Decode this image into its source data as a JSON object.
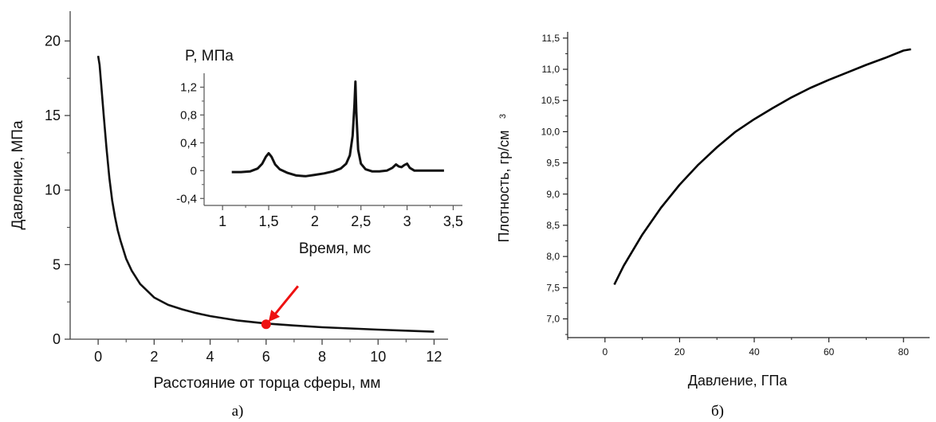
{
  "chart_data": [
    {
      "type": "line",
      "title": "",
      "xlabel": "Расстояние от торца сферы, мм",
      "ylabel": "Давление, МПа",
      "xlim": [
        -1,
        12.5
      ],
      "ylim": [
        0,
        22
      ],
      "xticks": [
        0,
        2,
        4,
        6,
        8,
        10,
        12
      ],
      "xtick_labels": [
        "0",
        "2",
        "4",
        "6",
        "8",
        "10",
        "12"
      ],
      "yticks": [
        0,
        5,
        10,
        15,
        20
      ],
      "ytick_labels": [
        "0",
        "5",
        "10",
        "15",
        "20"
      ],
      "grid": false,
      "series": [
        {
          "color": "#111111",
          "x": [
            0,
            0.05,
            0.1,
            0.2,
            0.3,
            0.4,
            0.5,
            0.6,
            0.7,
            0.8,
            1.0,
            1.2,
            1.5,
            2.0,
            2.5,
            3.0,
            3.5,
            4.0,
            5.0,
            6.0,
            7.0,
            8.0,
            9.0,
            10.0,
            11.0,
            12.0
          ],
          "y": [
            19,
            18.4,
            17.3,
            15.0,
            12.8,
            10.8,
            9.3,
            8.2,
            7.3,
            6.6,
            5.4,
            4.6,
            3.7,
            2.8,
            2.3,
            2.0,
            1.75,
            1.55,
            1.25,
            1.05,
            0.92,
            0.8,
            0.72,
            0.64,
            0.57,
            0.5
          ]
        }
      ],
      "marker": {
        "x": 6,
        "y": 1.0,
        "color": "#ee1111"
      },
      "arrow": {
        "color": "#ee1111"
      },
      "caption": "а)"
    },
    {
      "type": "line",
      "title": "",
      "xlabel": "Время, мс",
      "ylabel": "P, МПа",
      "xlim": [
        0.8,
        3.6
      ],
      "ylim": [
        -0.5,
        1.4
      ],
      "xticks": [
        1,
        1.5,
        2,
        2.5,
        3,
        3.5
      ],
      "xtick_labels": [
        "1",
        "1,5",
        "2",
        "2,5",
        "3",
        "3,5"
      ],
      "yticks": [
        -0.4,
        0,
        0.4,
        0.8,
        1.2
      ],
      "ytick_labels": [
        "-0,4",
        "0",
        "0,4",
        "0,8",
        "1,2"
      ],
      "grid": false,
      "series": [
        {
          "color": "#111111",
          "x": [
            1.1,
            1.2,
            1.3,
            1.38,
            1.43,
            1.47,
            1.5,
            1.53,
            1.57,
            1.62,
            1.7,
            1.8,
            1.9,
            2.0,
            2.1,
            2.2,
            2.28,
            2.34,
            2.38,
            2.41,
            2.43,
            2.44,
            2.45,
            2.47,
            2.5,
            2.55,
            2.62,
            2.7,
            2.78,
            2.84,
            2.88,
            2.91,
            2.94,
            2.97,
            3.0,
            3.03,
            3.08,
            3.15,
            3.25,
            3.4
          ],
          "y": [
            -0.02,
            -0.02,
            -0.01,
            0.03,
            0.1,
            0.2,
            0.25,
            0.2,
            0.09,
            0.02,
            -0.03,
            -0.07,
            -0.08,
            -0.06,
            -0.04,
            -0.01,
            0.03,
            0.1,
            0.22,
            0.5,
            0.95,
            1.28,
            0.85,
            0.3,
            0.1,
            0.02,
            -0.01,
            -0.01,
            0.0,
            0.04,
            0.09,
            0.06,
            0.05,
            0.08,
            0.1,
            0.04,
            0.0,
            0.0,
            0.0,
            0.0
          ]
        }
      ]
    },
    {
      "type": "line",
      "title": "",
      "xlabel": "Давление, ГПа",
      "ylabel": "Плотность, гр/см",
      "ylabel_superscript": "3",
      "xlim": [
        -10,
        87
      ],
      "ylim": [
        6.7,
        11.6
      ],
      "xticks": [
        0,
        20,
        40,
        60,
        80
      ],
      "xtick_labels": [
        "0",
        "20",
        "40",
        "60",
        "80"
      ],
      "yticks": [
        7.0,
        7.5,
        8.0,
        8.5,
        9.0,
        9.5,
        10.0,
        10.5,
        11.0,
        11.5
      ],
      "ytick_labels": [
        "7,0",
        "7,5",
        "8,0",
        "8,5",
        "9,0",
        "9,5",
        "10,0",
        "10,5",
        "11,0",
        "11,5"
      ],
      "grid": false,
      "series": [
        {
          "color": "#000000",
          "x": [
            2.5,
            5,
            10,
            15,
            20,
            25,
            30,
            35,
            40,
            45,
            50,
            55,
            60,
            65,
            70,
            75,
            80,
            82
          ],
          "y": [
            7.55,
            7.85,
            8.35,
            8.78,
            9.15,
            9.47,
            9.75,
            10.0,
            10.2,
            10.38,
            10.55,
            10.7,
            10.83,
            10.95,
            11.07,
            11.18,
            11.3,
            11.32
          ]
        }
      ],
      "caption": "б)"
    }
  ]
}
